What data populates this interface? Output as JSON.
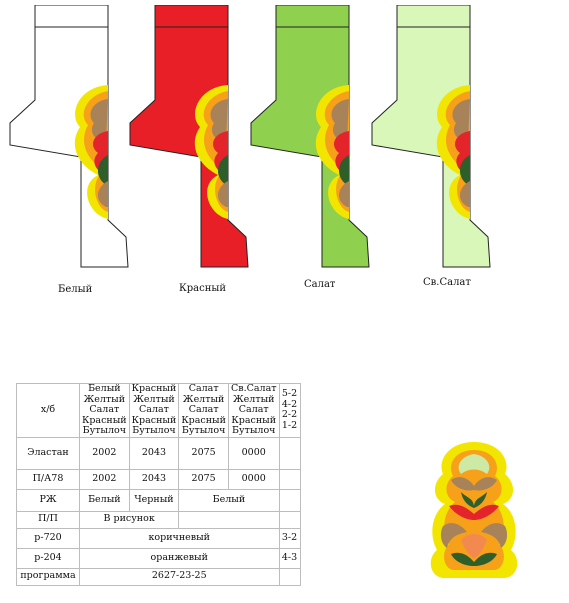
{
  "socks": [
    {
      "label": "Белый",
      "color": "#ffffff"
    },
    {
      "label": "Красный",
      "color": "#e81f27"
    },
    {
      "label": "Салат",
      "color": "#8fd14f"
    },
    {
      "label": "Св.Салат",
      "color": "#d9f7b9"
    }
  ],
  "table": {
    "header": {
      "col0": "х/б",
      "c1": [
        "Белый",
        "Желтый",
        "Салат",
        "Красный",
        "Бутылоч"
      ],
      "c2": [
        "Красный",
        "Желтый",
        "Салат",
        "Красный",
        "Бутылоч"
      ],
      "c3": [
        "Салат",
        "Желтый",
        "Салат",
        "Красный",
        "Бутылоч"
      ],
      "c4": [
        "Св.Салат",
        "Желтый",
        "Салат",
        "Красный",
        "Бутылоч"
      ],
      "c5": [
        "5-2",
        "4-2",
        "2-2",
        "1-2"
      ]
    },
    "elastan": {
      "label": "Эластан",
      "v1": "2002",
      "v2": "2043",
      "v3": "2075",
      "v4": "0000"
    },
    "pa78": {
      "label": "П/А78",
      "v1": "2002",
      "v2": "2043",
      "v3": "2075",
      "v4": "0000"
    },
    "rzh": {
      "label": "РЖ",
      "v1": "Белый",
      "v2": "Черный",
      "v3": "Белый"
    },
    "pp": {
      "label": "П/П",
      "v": "В рисунок"
    },
    "r720": {
      "label": "р-720",
      "v": "коричневый",
      "c": "3-2"
    },
    "r204": {
      "label": "р-204",
      "v": "оранжевый",
      "c": "4-3"
    },
    "prog": {
      "label": "программа",
      "v": "2627-23-25"
    }
  }
}
